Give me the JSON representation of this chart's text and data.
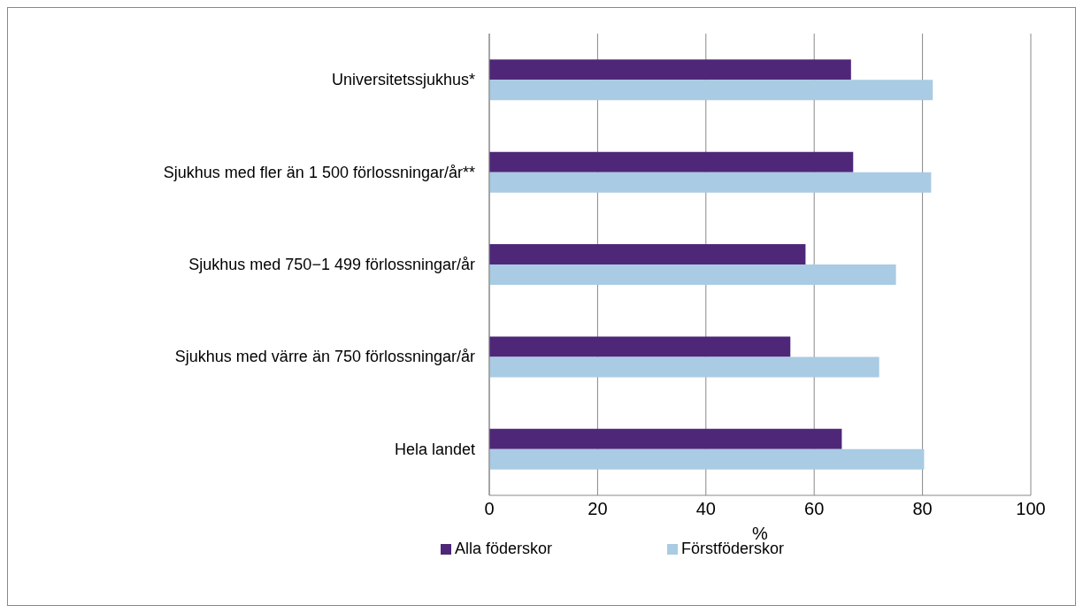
{
  "chart_data": {
    "type": "bar",
    "orientation": "horizontal",
    "xlabel": "%",
    "categories": [
      "Universitetssjukhus*",
      "Sjukhus med fler än 1 500 förlossningar/år**",
      "Sjukhus med 750−1 499 förlossningar/år",
      "Sjukhus med värre än 750 förlossningar/år",
      "Hela landet"
    ],
    "series": [
      {
        "name": "Alla föderskor",
        "color": "#4f2779",
        "values": [
          66.8,
          67.2,
          58.4,
          55.6,
          65.1
        ]
      },
      {
        "name": "Förstföderskor",
        "color": "#a9cbe3",
        "values": [
          81.9,
          81.6,
          75.1,
          72.0,
          80.3
        ]
      }
    ],
    "xlim": [
      0,
      100
    ],
    "xticks": [
      0,
      20,
      40,
      60,
      80,
      100
    ],
    "grid": "x",
    "legend": "bottom"
  }
}
